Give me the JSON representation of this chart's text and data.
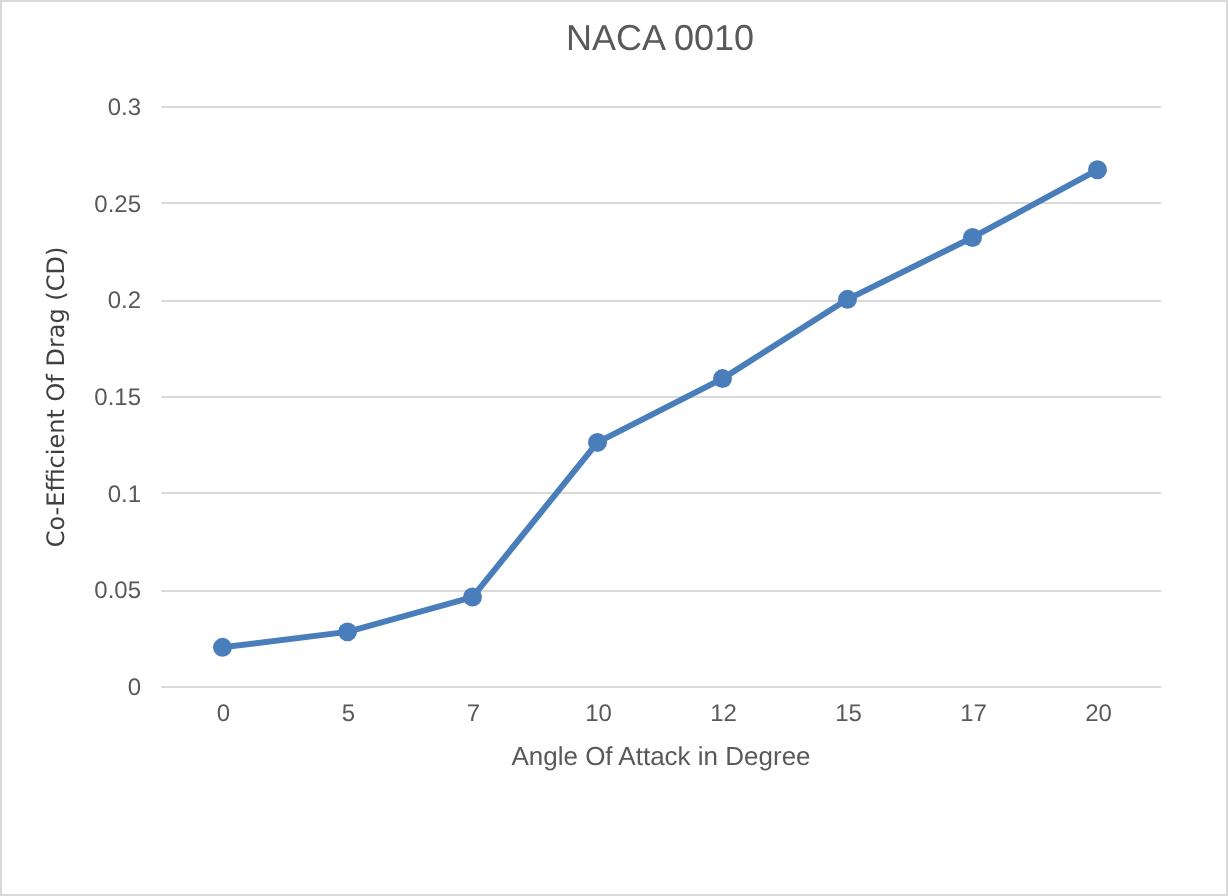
{
  "chart_data": {
    "type": "line",
    "title": "NACA 0010",
    "xlabel": "Angle Of Attack in Degree",
    "ylabel": "Co-Efficient Of Drag (CD)",
    "categories": [
      "0",
      "5",
      "7",
      "10",
      "12",
      "15",
      "17",
      "20"
    ],
    "series": [
      {
        "color": "#4a7ebb",
        "values": [
          0.02,
          0.028,
          0.046,
          0.126,
          0.159,
          0.2,
          0.232,
          0.267
        ]
      }
    ],
    "ylim": [
      0,
      0.3
    ],
    "yticks": [
      0,
      0.05,
      0.1,
      0.15,
      0.2,
      0.25,
      0.3
    ],
    "grid": "y",
    "marker": "circle",
    "legend": false
  }
}
